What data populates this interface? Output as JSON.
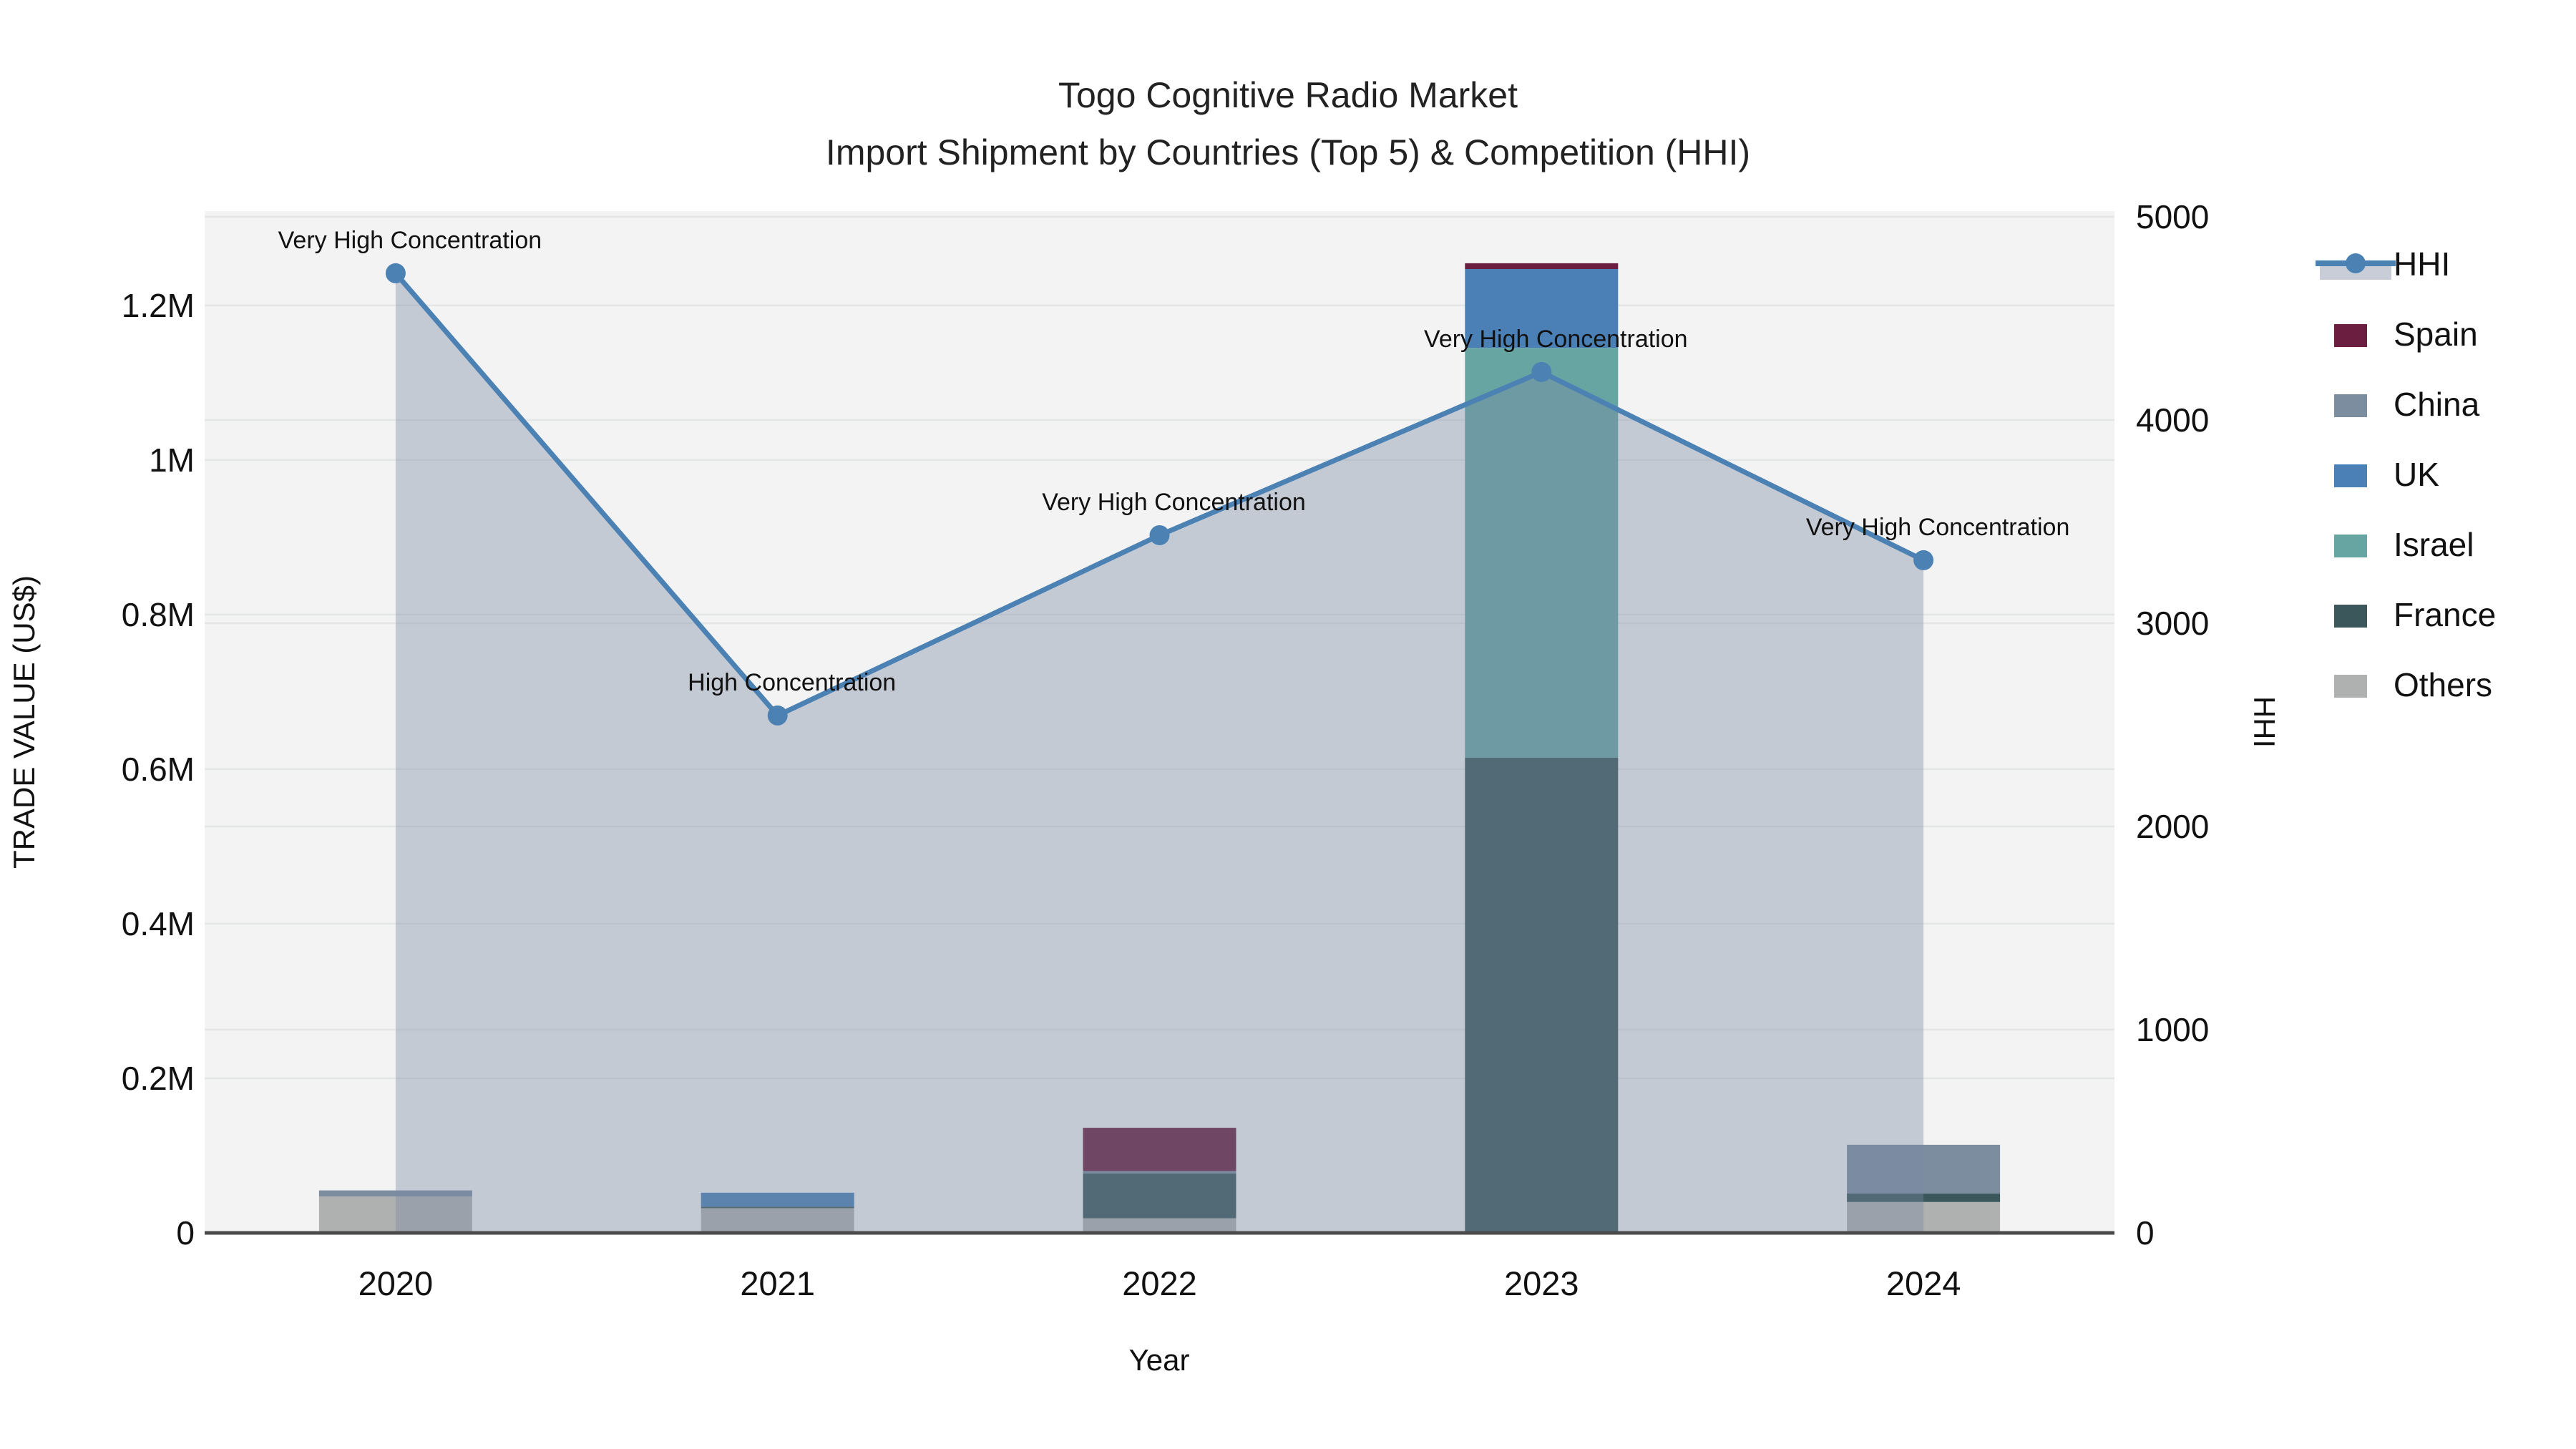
{
  "title": {
    "line1": "Togo Cognitive Radio Market",
    "line2": "Import Shipment by Countries (Top 5) & Competition (HHI)"
  },
  "axes": {
    "x_title": "Year",
    "y_left_title": "TRADE VALUE (US$)",
    "y_right_title": "HHI",
    "y_left_tick_labels": [
      "0",
      "0.2M",
      "0.4M",
      "0.6M",
      "0.8M",
      "1M",
      "1.2M"
    ],
    "y_left_tick_values": [
      0,
      200000,
      400000,
      600000,
      800000,
      1000000,
      1200000
    ],
    "y_right_tick_labels": [
      "0",
      "1000",
      "2000",
      "3000",
      "4000",
      "5000"
    ],
    "y_right_tick_values": [
      0,
      1000,
      2000,
      3000,
      4000,
      5000
    ]
  },
  "legend": {
    "items": [
      {
        "label": "HHI",
        "type": "line",
        "color": "#4c81b4"
      },
      {
        "label": "Spain",
        "type": "swatch",
        "color": "#6b1e3f"
      },
      {
        "label": "China",
        "type": "swatch",
        "color": "#7d8da0"
      },
      {
        "label": "UK",
        "type": "swatch",
        "color": "#4a80b5"
      },
      {
        "label": "Israel",
        "type": "swatch",
        "color": "#67a5a3"
      },
      {
        "label": "France",
        "type": "swatch",
        "color": "#3b575b"
      },
      {
        "label": "Others",
        "type": "swatch",
        "color": "#aeb1b0"
      }
    ]
  },
  "colors": {
    "plot_background": "#f2f3f2",
    "gridline": "#e4e6e6",
    "axis_line": "#4a4a4a",
    "hhi_line": "#4c81b4",
    "hhi_area_fill": "rgba(122,138,164,0.38)"
  },
  "chart_data": {
    "type": "combo-stacked-bar-line",
    "title": "Togo Cognitive Radio Market — Import Shipment by Countries (Top 5) & Competition (HHI)",
    "categories": [
      "2020",
      "2021",
      "2022",
      "2023",
      "2024"
    ],
    "bar_unit": "US$",
    "bar_axis": "left",
    "bar_ylim": [
      0,
      1322000
    ],
    "bar_series_stack_bottom_to_top": [
      {
        "name": "Others",
        "color": "#aeb1b0",
        "values": [
          47000,
          32000,
          19000,
          0,
          40000
        ]
      },
      {
        "name": "France",
        "color": "#3b575b",
        "values": [
          0,
          2000,
          58000,
          615000,
          11000
        ]
      },
      {
        "name": "Israel",
        "color": "#67a5a3",
        "values": [
          0,
          0,
          0,
          530000,
          0
        ]
      },
      {
        "name": "UK",
        "color": "#4a80b5",
        "values": [
          0,
          18000,
          0,
          102000,
          0
        ]
      },
      {
        "name": "China",
        "color": "#7d8da0",
        "values": [
          8000,
          0,
          3000,
          0,
          63000
        ]
      },
      {
        "name": "Spain",
        "color": "#6b1e3f",
        "values": [
          0,
          0,
          56000,
          7500,
          0
        ]
      }
    ],
    "line_series": {
      "name": "HHI",
      "axis": "right",
      "ylim": [
        0,
        5028
      ],
      "values": [
        4722,
        2546,
        3433,
        4236,
        3310
      ],
      "area_fill_between_first_and_last_point": true
    },
    "annotations": [
      {
        "category": "2020",
        "text": "Very High Concentration"
      },
      {
        "category": "2021",
        "text": "High Concentration"
      },
      {
        "category": "2022",
        "text": "Very High Concentration"
      },
      {
        "category": "2023",
        "text": "Very High Concentration"
      },
      {
        "category": "2024",
        "text": "Very High Concentration"
      }
    ],
    "legend_position": "right",
    "grid": true
  }
}
